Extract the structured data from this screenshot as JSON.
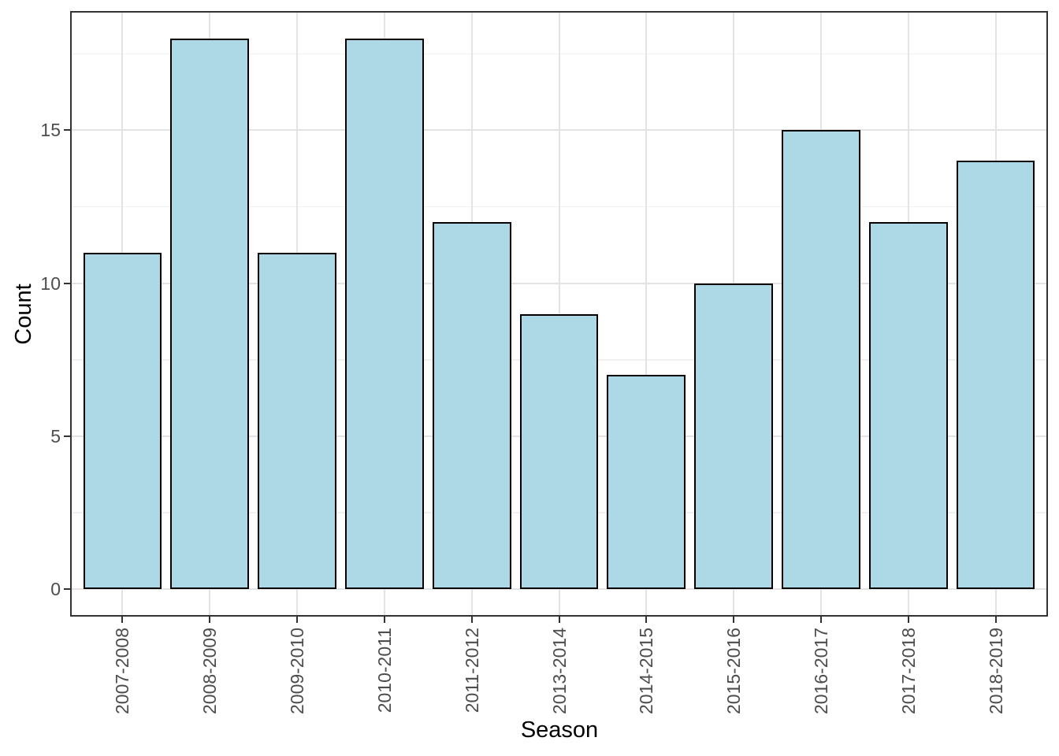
{
  "chart_data": {
    "type": "bar",
    "title": "",
    "xlabel": "Season",
    "ylabel": "Count",
    "categories": [
      "2007-2008",
      "2008-2009",
      "2009-2010",
      "2010-2011",
      "2011-2012",
      "2013-2014",
      "2014-2015",
      "2015-2016",
      "2016-2017",
      "2017-2018",
      "2018-2019"
    ],
    "values": [
      11,
      18,
      11,
      18,
      12,
      9,
      7,
      10,
      15,
      12,
      14
    ],
    "y_ticks": [
      0,
      5,
      10,
      15
    ],
    "y_minor_gridlines": [
      2.5,
      7.5,
      12.5,
      17.5
    ],
    "ylim": [
      0,
      18
    ],
    "grid": "on",
    "legend": "none",
    "colors": {
      "bar_fill": "#ADD8E6",
      "bar_stroke": "#000000",
      "panel_border": "#333333",
      "grid_major": "#E3E3E3",
      "grid_minor": "#F0F0F0",
      "tick": "#333333",
      "tick_label": "#4D4D4D",
      "axis_title": "#000000",
      "background": "#FFFFFF"
    }
  }
}
